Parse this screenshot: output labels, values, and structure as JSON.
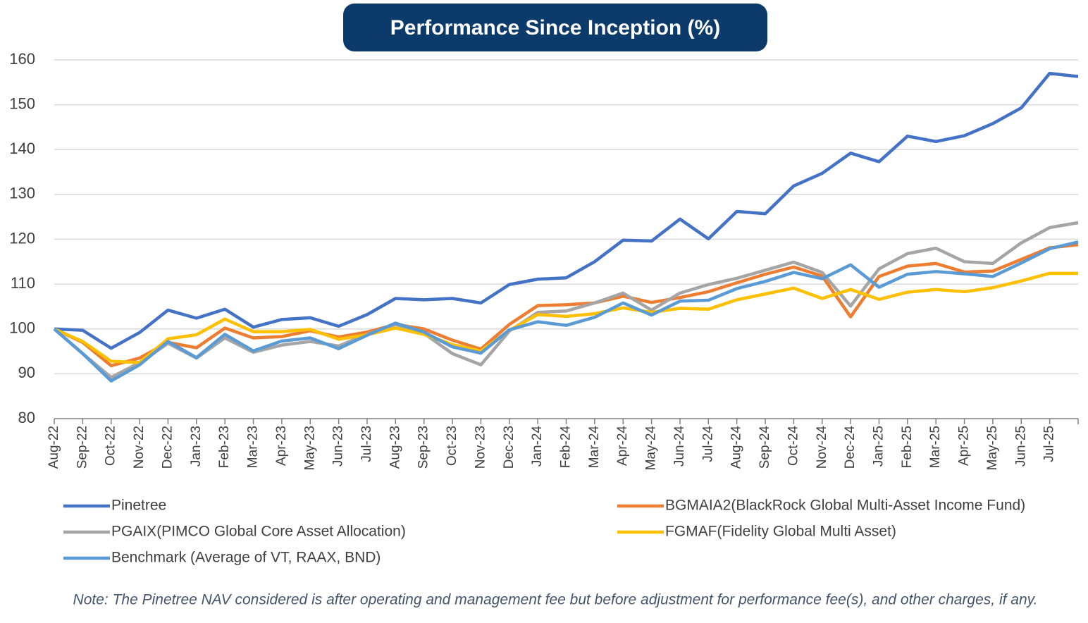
{
  "chart_data": {
    "type": "line",
    "title": "Performance Since Inception (%)",
    "note": "Note: The Pinetree NAV considered is after operating and management fee but before adjustment for performance fee(s), and other charges, if any.",
    "categories": [
      "Aug-22",
      "Sep-22",
      "Oct-22",
      "Nov-22",
      "Dec-22",
      "Jan-23",
      "Feb-23",
      "Mar-23",
      "Apr-23",
      "May-23",
      "Jun-23",
      "Jul-23",
      "Aug-23",
      "Sep-23",
      "Oct-23",
      "Nov-23",
      "Dec-23",
      "Jan-24",
      "Feb-24",
      "Mar-24",
      "Apr-24",
      "May-24",
      "Jun-24",
      "Jul-24",
      "Aug-24",
      "Sep-24",
      "Oct-24",
      "Nov-24",
      "Dec-24",
      "Jan-25",
      "Feb-25",
      "Mar-25",
      "Apr-25",
      "May-25",
      "Jun-25",
      "Jul-25",
      null
    ],
    "series": [
      {
        "name": "Pinetree",
        "color": "#4472c4",
        "values": [
          100,
          99.7,
          95.7,
          99.2,
          104.2,
          102.4,
          104.4,
          100.4,
          102.1,
          102.5,
          100.6,
          103.2,
          106.8,
          106.5,
          106.8,
          105.8,
          109.9,
          111.1,
          111.4,
          115,
          119.8,
          119.6,
          124.5,
          120.1,
          126.2,
          125.7,
          131.9,
          134.7,
          139.2,
          137.3,
          143,
          141.8,
          143.1,
          145.8,
          149.3,
          157,
          156.3
        ]
      },
      {
        "name": "BGMAIA2(BlackRock Global Multi-Asset Income Fund)",
        "color": "#ed7d31",
        "values": [
          100,
          97,
          91.8,
          93.5,
          97,
          95.8,
          100.2,
          98,
          98.3,
          99.6,
          98.2,
          99.3,
          101,
          100,
          97.5,
          95.5,
          101,
          105.2,
          105.4,
          105.8,
          107.3,
          105.9,
          107,
          108.3,
          110.3,
          112.2,
          113.8,
          111.8,
          102.7,
          111.7,
          114,
          114.6,
          112.7,
          112.9,
          115.5,
          118.1,
          118.8
        ]
      },
      {
        "name": "PGAIX(PIMCO Global Core Asset Allocation)",
        "color": "#a5a5a5",
        "values": [
          100,
          94.5,
          89.2,
          92.5,
          96.8,
          93.5,
          98,
          94.8,
          96.4,
          97.2,
          96.2,
          98.8,
          101,
          99,
          94.5,
          92,
          99.5,
          103.7,
          104,
          105.8,
          108,
          104.2,
          108,
          109.9,
          111.3,
          113.1,
          114.9,
          112.6,
          105.1,
          113.4,
          116.8,
          118,
          115,
          114.6,
          119.2,
          122.6,
          123.7
        ]
      },
      {
        "name": "FGMAF(Fidelity Global Multi Asset)",
        "color": "#ffc000",
        "values": [
          100,
          97.2,
          92.8,
          92.5,
          97.8,
          98.7,
          102.2,
          99.4,
          99.4,
          99.9,
          97.7,
          98.7,
          100.2,
          98.8,
          96.5,
          95.1,
          99.7,
          103.2,
          102.8,
          103.4,
          104.7,
          103.7,
          104.6,
          104.4,
          106.5,
          107.8,
          109.1,
          106.8,
          108.8,
          106.6,
          108.2,
          108.8,
          108.3,
          109.2,
          110.7,
          112.4,
          112.4
        ]
      },
      {
        "name": "Benchmark (Average of VT, RAAX, BND)",
        "color": "#5b9bd5",
        "values": [
          100,
          94.5,
          88.4,
          92,
          97.2,
          93.6,
          98.8,
          95.1,
          97.3,
          98,
          95.6,
          98.6,
          101.3,
          99.3,
          96,
          94.6,
          99.8,
          101.6,
          100.8,
          102.6,
          105.8,
          103.1,
          106.2,
          106.4,
          109,
          110.6,
          112.6,
          111.2,
          114.3,
          109.3,
          112.2,
          112.8,
          112.3,
          111.7,
          114.7,
          117.9,
          119.4
        ]
      }
    ],
    "ylim": [
      80,
      160
    ],
    "yticks": [
      80,
      90,
      100,
      110,
      120,
      130,
      140,
      150,
      160
    ],
    "grid": true
  }
}
